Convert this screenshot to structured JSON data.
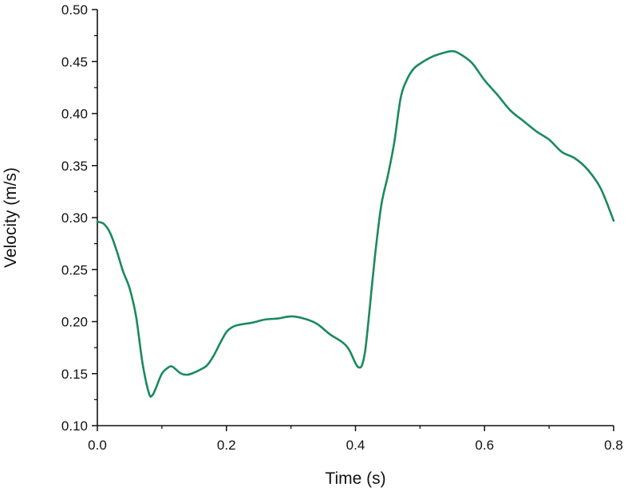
{
  "chart_data": {
    "type": "line",
    "title": "",
    "xlabel": "Time (s)",
    "ylabel": "Velocity (m/s)",
    "xlim": [
      0,
      0.8
    ],
    "ylim": [
      0.1,
      0.5
    ],
    "x_ticks": [
      "0.0",
      "0.2",
      "0.4",
      "0.6",
      "0.8"
    ],
    "y_ticks": [
      "0.10",
      "0.15",
      "0.20",
      "0.25",
      "0.30",
      "0.35",
      "0.40",
      "0.45",
      "0.50"
    ],
    "grid": false,
    "line_color": "#1a8a5e",
    "series": [
      {
        "x": [
          0.0,
          0.01,
          0.02,
          0.03,
          0.04,
          0.05,
          0.06,
          0.07,
          0.08,
          0.085,
          0.09,
          0.1,
          0.11,
          0.115,
          0.12,
          0.13,
          0.14,
          0.15,
          0.16,
          0.17,
          0.18,
          0.19,
          0.2,
          0.21,
          0.22,
          0.24,
          0.26,
          0.28,
          0.3,
          0.32,
          0.34,
          0.36,
          0.38,
          0.39,
          0.4,
          0.405,
          0.41,
          0.415,
          0.42,
          0.43,
          0.44,
          0.45,
          0.46,
          0.47,
          0.48,
          0.49,
          0.5,
          0.52,
          0.54,
          0.55,
          0.56,
          0.58,
          0.6,
          0.62,
          0.64,
          0.66,
          0.68,
          0.7,
          0.72,
          0.74,
          0.76,
          0.78,
          0.8
        ],
        "y": [
          0.296,
          0.294,
          0.285,
          0.268,
          0.248,
          0.232,
          0.205,
          0.16,
          0.131,
          0.129,
          0.135,
          0.15,
          0.156,
          0.157,
          0.155,
          0.15,
          0.149,
          0.151,
          0.154,
          0.158,
          0.167,
          0.179,
          0.19,
          0.195,
          0.197,
          0.199,
          0.202,
          0.203,
          0.205,
          0.203,
          0.198,
          0.188,
          0.18,
          0.173,
          0.16,
          0.156,
          0.158,
          0.172,
          0.2,
          0.262,
          0.312,
          0.34,
          0.372,
          0.415,
          0.433,
          0.443,
          0.448,
          0.455,
          0.459,
          0.46,
          0.458,
          0.449,
          0.432,
          0.418,
          0.403,
          0.393,
          0.383,
          0.375,
          0.363,
          0.357,
          0.346,
          0.328,
          0.297
        ]
      }
    ]
  }
}
